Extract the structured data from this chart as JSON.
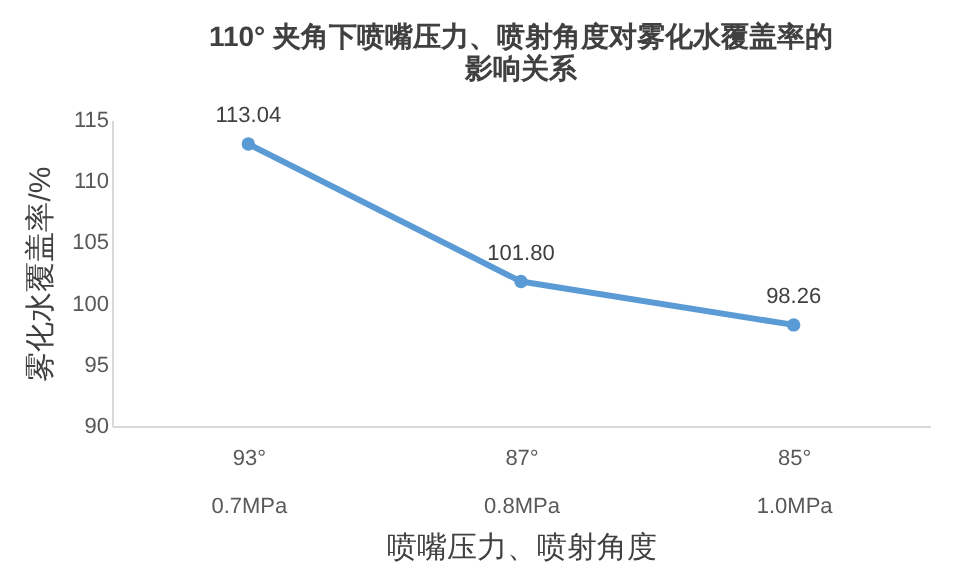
{
  "chart_data": {
    "type": "line",
    "title": "110° 夹角下喷嘴压力、喷射角度对雾化水覆盖率的影响关系",
    "xlabel": "喷嘴压力、喷射角度",
    "ylabel": "雾化水覆盖率/%",
    "categories": [
      "93°\n0.7MPa",
      "87°\n0.8MPa",
      "85°\n1.0MPa"
    ],
    "series": [
      {
        "color": "#5b9bd5",
        "values": [
          113.04,
          101.8,
          98.26
        ],
        "value_labels": [
          "113.04",
          "101.80",
          "98.26"
        ]
      }
    ],
    "ylim": [
      90,
      115
    ],
    "yticks": [
      90,
      95,
      100,
      105,
      110,
      115
    ],
    "marker": "circle"
  }
}
